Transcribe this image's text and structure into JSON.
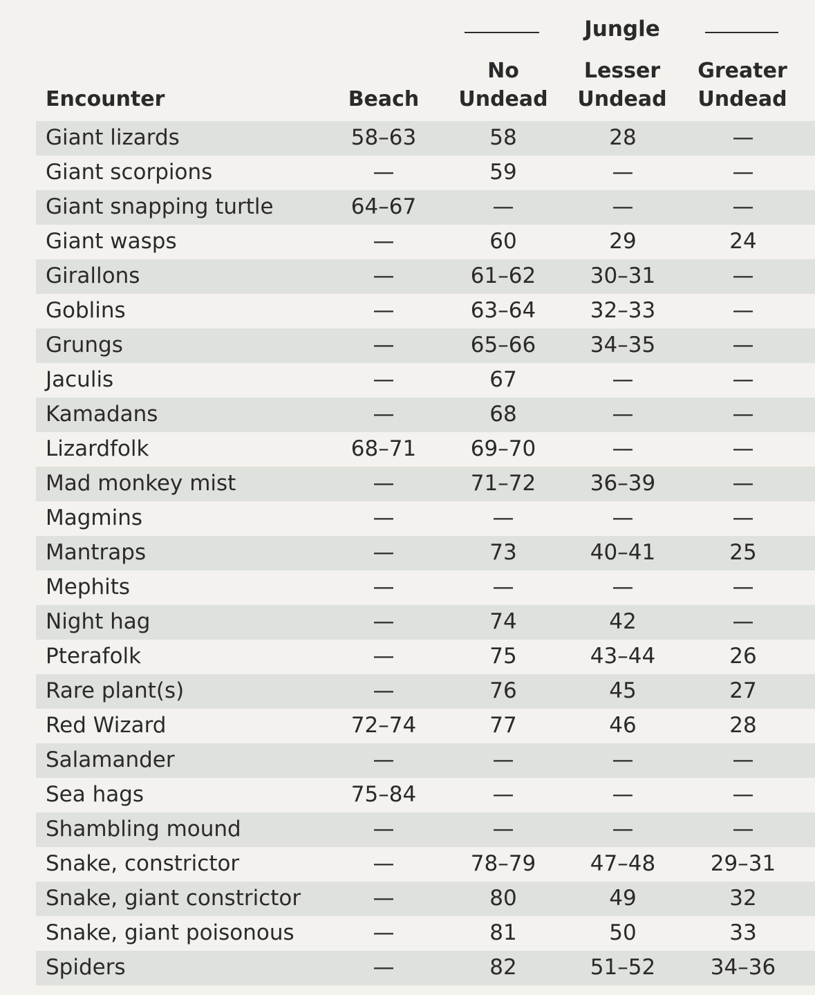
{
  "group_header": {
    "label": "Jungle"
  },
  "columns": {
    "encounter": "Encounter",
    "beach": "Beach",
    "no_undead": [
      "No",
      "Undead"
    ],
    "lesser_undead": [
      "Lesser",
      "Undead"
    ],
    "greater_undead": [
      "Greater",
      "Undead"
    ]
  },
  "rows": [
    {
      "name": "Giant lizards",
      "beach": "58–63",
      "no_undead": "58",
      "lesser_undead": "28",
      "greater_undead": "—"
    },
    {
      "name": "Giant scorpions",
      "beach": "—",
      "no_undead": "59",
      "lesser_undead": "—",
      "greater_undead": "—"
    },
    {
      "name": "Giant snapping turtle",
      "beach": "64–67",
      "no_undead": "—",
      "lesser_undead": "—",
      "greater_undead": "—"
    },
    {
      "name": "Giant wasps",
      "beach": "—",
      "no_undead": "60",
      "lesser_undead": "29",
      "greater_undead": "24"
    },
    {
      "name": "Girallons",
      "beach": "—",
      "no_undead": "61–62",
      "lesser_undead": "30–31",
      "greater_undead": "—"
    },
    {
      "name": "Goblins",
      "beach": "—",
      "no_undead": "63–64",
      "lesser_undead": "32–33",
      "greater_undead": "—"
    },
    {
      "name": "Grungs",
      "beach": "—",
      "no_undead": "65–66",
      "lesser_undead": "34–35",
      "greater_undead": "—"
    },
    {
      "name": "Jaculis",
      "beach": "—",
      "no_undead": "67",
      "lesser_undead": "—",
      "greater_undead": "—"
    },
    {
      "name": "Kamadans",
      "beach": "—",
      "no_undead": "68",
      "lesser_undead": "—",
      "greater_undead": "—"
    },
    {
      "name": "Lizardfolk",
      "beach": "68–71",
      "no_undead": "69–70",
      "lesser_undead": "—",
      "greater_undead": "—"
    },
    {
      "name": "Mad monkey mist",
      "beach": "—",
      "no_undead": "71–72",
      "lesser_undead": "36–39",
      "greater_undead": "—"
    },
    {
      "name": "Magmins",
      "beach": "—",
      "no_undead": "—",
      "lesser_undead": "—",
      "greater_undead": "—"
    },
    {
      "name": "Mantraps",
      "beach": "—",
      "no_undead": "73",
      "lesser_undead": "40–41",
      "greater_undead": "25"
    },
    {
      "name": "Mephits",
      "beach": "—",
      "no_undead": "—",
      "lesser_undead": "—",
      "greater_undead": "—"
    },
    {
      "name": "Night hag",
      "beach": "—",
      "no_undead": "74",
      "lesser_undead": "42",
      "greater_undead": "—"
    },
    {
      "name": "Pterafolk",
      "beach": "—",
      "no_undead": "75",
      "lesser_undead": "43–44",
      "greater_undead": "26"
    },
    {
      "name": "Rare plant(s)",
      "beach": "—",
      "no_undead": "76",
      "lesser_undead": "45",
      "greater_undead": "27"
    },
    {
      "name": "Red Wizard",
      "beach": "72–74",
      "no_undead": "77",
      "lesser_undead": "46",
      "greater_undead": "28"
    },
    {
      "name": "Salamander",
      "beach": "—",
      "no_undead": "—",
      "lesser_undead": "—",
      "greater_undead": "—"
    },
    {
      "name": "Sea hags",
      "beach": "75–84",
      "no_undead": "—",
      "lesser_undead": "—",
      "greater_undead": "—"
    },
    {
      "name": "Shambling mound",
      "beach": "—",
      "no_undead": "—",
      "lesser_undead": "—",
      "greater_undead": "—"
    },
    {
      "name": "Snake, constrictor",
      "beach": "—",
      "no_undead": "78–79",
      "lesser_undead": "47–48",
      "greater_undead": "29–31"
    },
    {
      "name": "Snake, giant constrictor",
      "beach": "—",
      "no_undead": "80",
      "lesser_undead": "49",
      "greater_undead": "32"
    },
    {
      "name": "Snake, giant poisonous",
      "beach": "—",
      "no_undead": "81",
      "lesser_undead": "50",
      "greater_undead": "33"
    },
    {
      "name": "Spiders",
      "beach": "—",
      "no_undead": "82",
      "lesser_undead": "51–52",
      "greater_undead": "34–36"
    }
  ],
  "colors": {
    "page_background": "#f3f2ee",
    "shaded_row": "#dfe1dc",
    "text": "#2a2a2a"
  }
}
